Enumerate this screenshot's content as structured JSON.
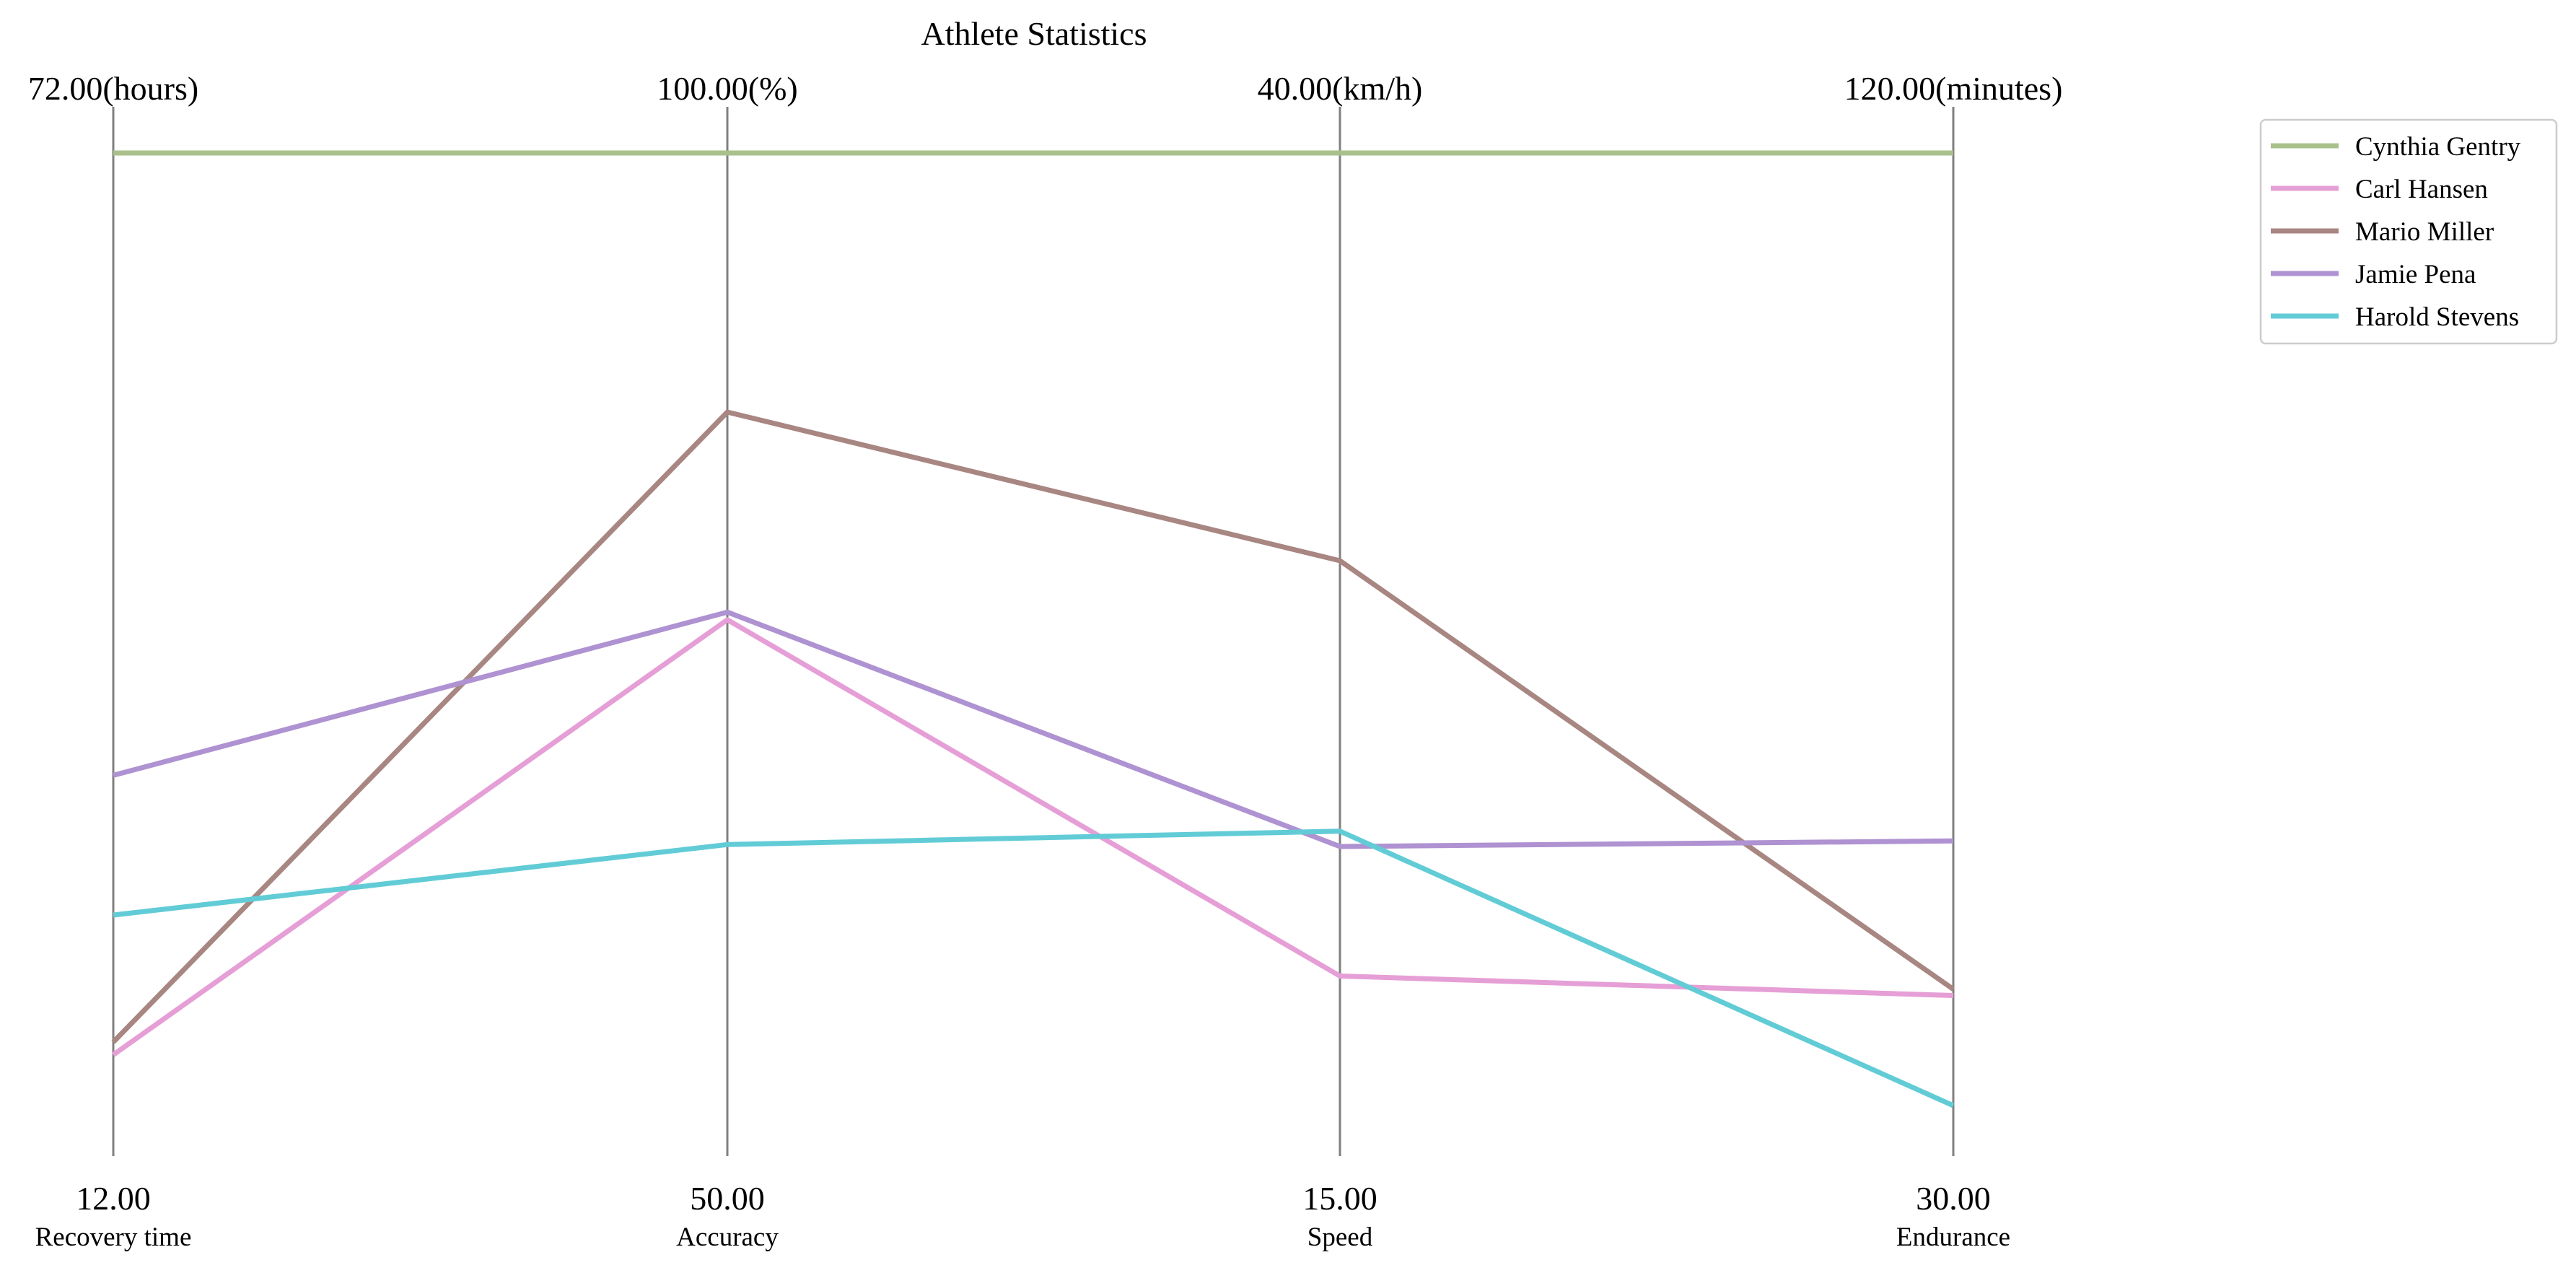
{
  "chart_data": {
    "type": "parallel-coordinates",
    "title": "Athlete Statistics",
    "axes": [
      {
        "name": "Recovery time",
        "unit": "hours",
        "min": 12.0,
        "max": 72.0,
        "min_label": "12.00",
        "max_label": "72.00(hours)"
      },
      {
        "name": "Accuracy",
        "unit": "%",
        "min": 50.0,
        "max": 100.0,
        "min_label": "50.00",
        "max_label": "100.00(%)"
      },
      {
        "name": "Speed",
        "unit": "km/h",
        "min": 15.0,
        "max": 40.0,
        "min_label": "15.00",
        "max_label": "40.00(km/h)"
      },
      {
        "name": "Endurance",
        "unit": "minutes",
        "min": 30.0,
        "max": 120.0,
        "min_label": "30.00",
        "max_label": "120.00(minutes)"
      }
    ],
    "series": [
      {
        "name": "Cynthia Gentry",
        "color": "#a9c08b",
        "values": [
          72.0,
          100.0,
          40.0,
          120.0
        ]
      },
      {
        "name": "Carl Hansen",
        "color": "#e69fd6",
        "values": [
          15.2,
          75.5,
          18.4,
          40.4
        ]
      },
      {
        "name": "Mario Miller",
        "color": "#a88682",
        "values": [
          16.0,
          86.4,
          29.3,
          41.0
        ]
      },
      {
        "name": "Jamie Pena",
        "color": "#af92d1",
        "values": [
          32.8,
          75.9,
          21.8,
          55.0
        ]
      },
      {
        "name": "Harold Stevens",
        "color": "#62ccd6",
        "values": [
          24.0,
          63.7,
          22.2,
          30.0
        ]
      }
    ],
    "legend_position": "top-right",
    "grid": false
  }
}
